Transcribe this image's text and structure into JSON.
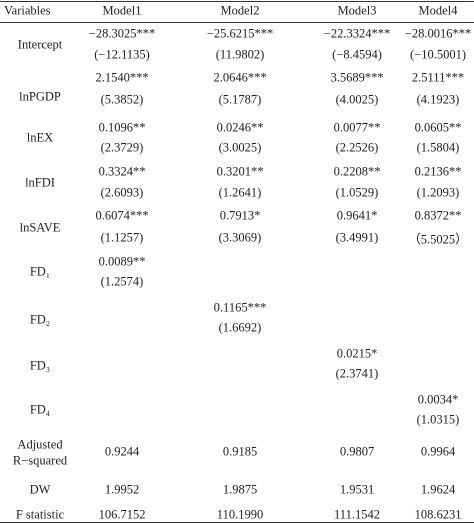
{
  "table": {
    "header": [
      "Variables",
      "Model1",
      "Model2",
      "Model3",
      "Model4"
    ],
    "rows": [
      {
        "label": [
          "Intercept"
        ],
        "cells": [
          [
            "−28.3025***",
            "(−12.1135)"
          ],
          [
            "−25.6215***",
            "(11.9802)"
          ],
          [
            "−22.3324***",
            "(−8.4594)"
          ],
          [
            "−28.0016***",
            "(−10.5001)"
          ]
        ]
      },
      {
        "label": [
          "lnPGDP"
        ],
        "cells": [
          [
            "2.1540***",
            "(5.3852)"
          ],
          [
            "2.0646***",
            "(5.1787)"
          ],
          [
            "3.5689***",
            "(4.0025)"
          ],
          [
            "2.5111***",
            "(4.1923)"
          ]
        ]
      },
      {
        "label": [
          "lnEX"
        ],
        "cells": [
          [
            "0.1096**",
            "(2.3729)"
          ],
          [
            "0.0246**",
            "(3.0025)"
          ],
          [
            "0.0077**",
            "(2.2526)"
          ],
          [
            "0.0605**",
            "(1.5804)"
          ]
        ]
      },
      {
        "label": [
          "lnFDI"
        ],
        "cells": [
          [
            "0.3324**",
            "(2.6093)"
          ],
          [
            "0.3201**",
            "(1.2641)"
          ],
          [
            "0.2208**",
            "(1.0529)"
          ],
          [
            "0.2136**",
            "(1.2093)"
          ]
        ]
      },
      {
        "label": [
          "lnSAVE"
        ],
        "cells": [
          [
            "0.6074***",
            "(1.1257)"
          ],
          [
            "0.7913*",
            "(3.3069)"
          ],
          [
            "0.9641*",
            "(3.4991)"
          ],
          [
            "0.8372**",
            "（5.5025）"
          ]
        ]
      },
      {
        "label": [
          "FD₁"
        ],
        "cells": [
          [
            "0.0089**",
            "(1.2574)"
          ],
          null,
          null,
          null
        ]
      },
      {
        "label": [
          "FD₂"
        ],
        "cells": [
          null,
          [
            "0.1165***",
            "(1.6692)"
          ],
          null,
          null
        ]
      },
      {
        "label": [
          "FD₃"
        ],
        "cells": [
          null,
          null,
          [
            "0.0215*",
            "(2.3741)"
          ],
          null
        ]
      },
      {
        "label": [
          "FD₄"
        ],
        "cells": [
          null,
          null,
          null,
          [
            "0.0034*",
            "(1.0315)"
          ]
        ]
      },
      {
        "label": [
          "Adjusted",
          "R−squared"
        ],
        "cells": [
          [
            "0.9244"
          ],
          [
            "0.9185"
          ],
          [
            "0.9807"
          ],
          [
            "0.9964"
          ]
        ]
      },
      {
        "label": [
          "DW"
        ],
        "cells": [
          [
            "1.9952"
          ],
          [
            "1.9875"
          ],
          [
            "1.9531"
          ],
          [
            "1.9624"
          ]
        ]
      },
      {
        "label": [
          "F statistic"
        ],
        "cells": [
          [
            "106.7152"
          ],
          [
            "110.1990"
          ],
          [
            "111.1542"
          ],
          [
            "108.6231"
          ]
        ]
      }
    ]
  }
}
